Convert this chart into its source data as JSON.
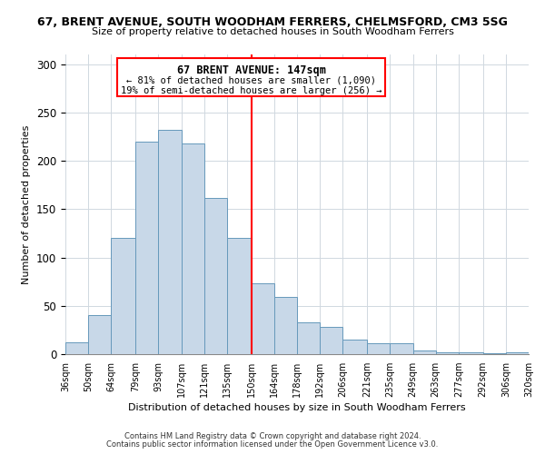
{
  "title1": "67, BRENT AVENUE, SOUTH WOODHAM FERRERS, CHELMSFORD, CM3 5SG",
  "title2": "Size of property relative to detached houses in South Woodham Ferrers",
  "xlabel": "Distribution of detached houses by size in South Woodham Ferrers",
  "ylabel": "Number of detached properties",
  "bin_labels": [
    "36sqm",
    "50sqm",
    "64sqm",
    "79sqm",
    "93sqm",
    "107sqm",
    "121sqm",
    "135sqm",
    "150sqm",
    "164sqm",
    "178sqm",
    "192sqm",
    "206sqm",
    "221sqm",
    "235sqm",
    "249sqm",
    "263sqm",
    "277sqm",
    "292sqm",
    "306sqm",
    "320sqm"
  ],
  "bar_values": [
    12,
    40,
    120,
    220,
    232,
    218,
    162,
    120,
    73,
    59,
    33,
    28,
    15,
    11,
    11,
    4,
    2,
    2,
    1,
    2
  ],
  "bar_color": "#c8d8e8",
  "bar_edge_color": "#6699bb",
  "bin_edges": [
    36,
    50,
    64,
    79,
    93,
    107,
    121,
    135,
    150,
    164,
    178,
    192,
    206,
    221,
    235,
    249,
    263,
    277,
    292,
    306,
    320
  ],
  "annotation_title": "67 BRENT AVENUE: 147sqm",
  "annotation_line1": "← 81% of detached houses are smaller (1,090)",
  "annotation_line2": "19% of semi-detached houses are larger (256) →",
  "footnote1": "Contains HM Land Registry data © Crown copyright and database right 2024.",
  "footnote2": "Contains public sector information licensed under the Open Government Licence v3.0.",
  "ylim": [
    0,
    310
  ],
  "yticks": [
    0,
    50,
    100,
    150,
    200,
    250,
    300
  ]
}
